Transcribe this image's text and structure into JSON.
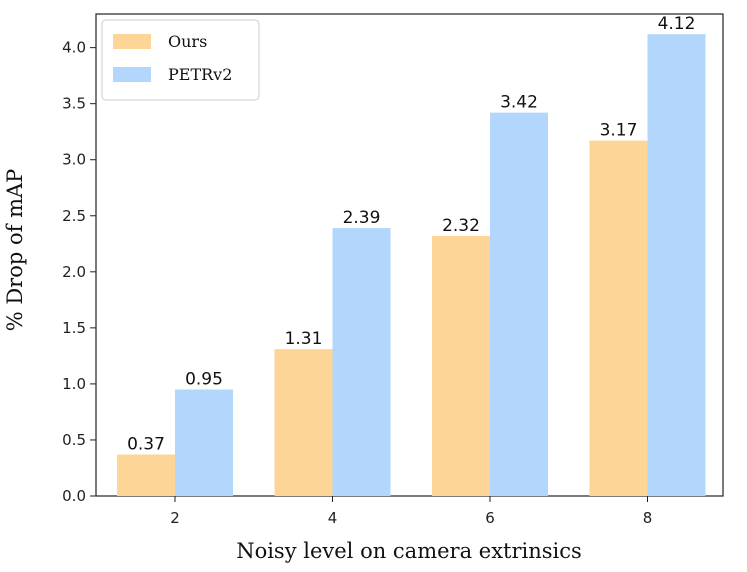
{
  "chart_data": {
    "type": "bar",
    "categories": [
      "2",
      "4",
      "6",
      "8"
    ],
    "series": [
      {
        "name": "Ours",
        "color": "#FDD597",
        "values": [
          0.37,
          1.31,
          2.32,
          3.17
        ],
        "labels": [
          "0.37",
          "1.31",
          "2.32",
          "3.17"
        ]
      },
      {
        "name": "PETRv2",
        "color": "#B3D7FC",
        "values": [
          0.95,
          2.39,
          3.42,
          4.12
        ],
        "labels": [
          "0.95",
          "2.39",
          "3.42",
          "4.12"
        ]
      }
    ],
    "xlabel": "Noisy level on camera extrinsics",
    "ylabel": "% Drop of mAP",
    "ylim": [
      0,
      4.3
    ],
    "yticks": [
      "0.0",
      "0.5",
      "1.0",
      "1.5",
      "2.0",
      "2.5",
      "3.0",
      "3.5",
      "4.0"
    ],
    "legend_position": "top-left",
    "grid": false
  }
}
